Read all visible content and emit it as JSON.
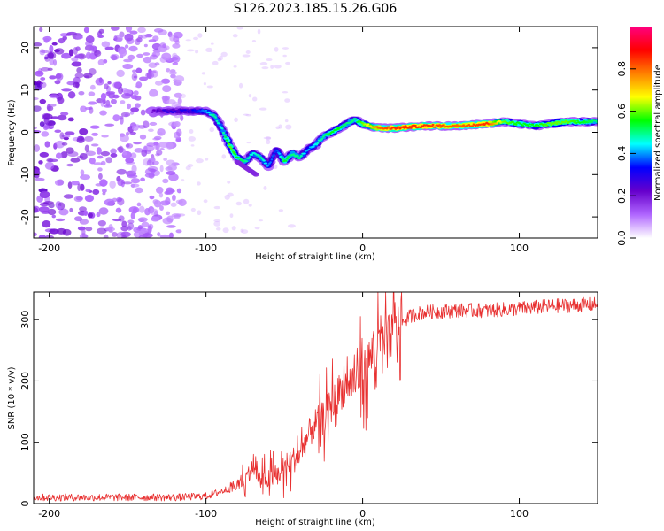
{
  "title": "S126.2023.185.15.26.G06",
  "chart_data": [
    {
      "type": "heatmap",
      "xlabel": "Height of straight line (km)",
      "ylabel": "Frequency (Hz)",
      "xlim": [
        -210,
        150
      ],
      "ylim": [
        -25,
        25
      ],
      "xticks": [
        -200,
        -100,
        0,
        100
      ],
      "yticks": [
        -20,
        -10,
        0,
        10,
        20
      ],
      "colorbar": {
        "label": "Normalized spectral amplitude",
        "range": [
          0,
          1
        ],
        "ticks": [
          "0.0",
          "0.2",
          "0.4",
          "0.6",
          "0.8"
        ],
        "colors": [
          "#ffffff",
          "#b066ff",
          "#6600cc",
          "#0000ff",
          "#00ffff",
          "#00ff00",
          "#ffff00",
          "#ff8000",
          "#ff0000",
          "#ff0080"
        ]
      },
      "ridge": {
        "x": [
          -135,
          -125,
          -115,
          -105,
          -100,
          -95,
          -90,
          -85,
          -80,
          -75,
          -70,
          -65,
          -60,
          -55,
          -50,
          -45,
          -40,
          -35,
          -30,
          -25,
          -20,
          -15,
          -10,
          -5,
          0,
          10,
          20,
          40,
          60,
          80,
          90,
          100,
          110,
          120,
          130,
          140,
          150
        ],
        "y": [
          5,
          5,
          5,
          5,
          5,
          4,
          1,
          -3,
          -6,
          -7,
          -5,
          -6,
          -8,
          -4,
          -7,
          -5,
          -6,
          -4,
          -3,
          -1,
          0,
          1,
          2,
          3,
          2,
          1,
          1,
          1.5,
          1.5,
          2,
          2.5,
          2,
          1.5,
          2,
          2.5,
          2.5,
          2.5
        ],
        "amplitude": [
          0.2,
          0.3,
          0.3,
          0.35,
          0.4,
          0.5,
          0.45,
          0.6,
          0.55,
          0.5,
          0.45,
          0.5,
          0.4,
          0.35,
          0.55,
          0.5,
          0.5,
          0.4,
          0.45,
          0.5,
          0.55,
          0.55,
          0.5,
          0.5,
          0.6,
          0.8,
          0.85,
          0.85,
          0.8,
          0.85,
          0.6,
          0.55,
          0.55,
          0.6,
          0.6,
          0.55,
          0.5
        ]
      },
      "noise_region_x": [
        -210,
        -115
      ]
    },
    {
      "type": "line",
      "xlabel": "Height of straight line (km)",
      "ylabel": "SNR (10 * v/v)",
      "xlim": [
        -210,
        150
      ],
      "ylim": [
        0,
        345
      ],
      "xticks": [
        -200,
        -100,
        0,
        100
      ],
      "yticks": [
        0,
        100,
        200,
        300
      ],
      "color": "#e83030",
      "series": [
        {
          "x": [
            -210,
            -180,
            -150,
            -120,
            -100,
            -90,
            -80,
            -75,
            -70,
            -65,
            -60,
            -55,
            -50,
            -45,
            -40,
            -35,
            -30,
            -25,
            -20,
            -15,
            -10,
            -5,
            0,
            5,
            10,
            15,
            20,
            25,
            30,
            35,
            40,
            60,
            80,
            100,
            120,
            150
          ],
          "y": [
            10,
            10,
            10,
            10,
            12,
            20,
            30,
            40,
            60,
            35,
            40,
            45,
            60,
            70,
            80,
            110,
            130,
            140,
            160,
            180,
            195,
            200,
            210,
            240,
            255,
            265,
            280,
            295,
            305,
            310,
            312,
            315,
            315,
            318,
            322,
            325
          ]
        }
      ]
    }
  ]
}
